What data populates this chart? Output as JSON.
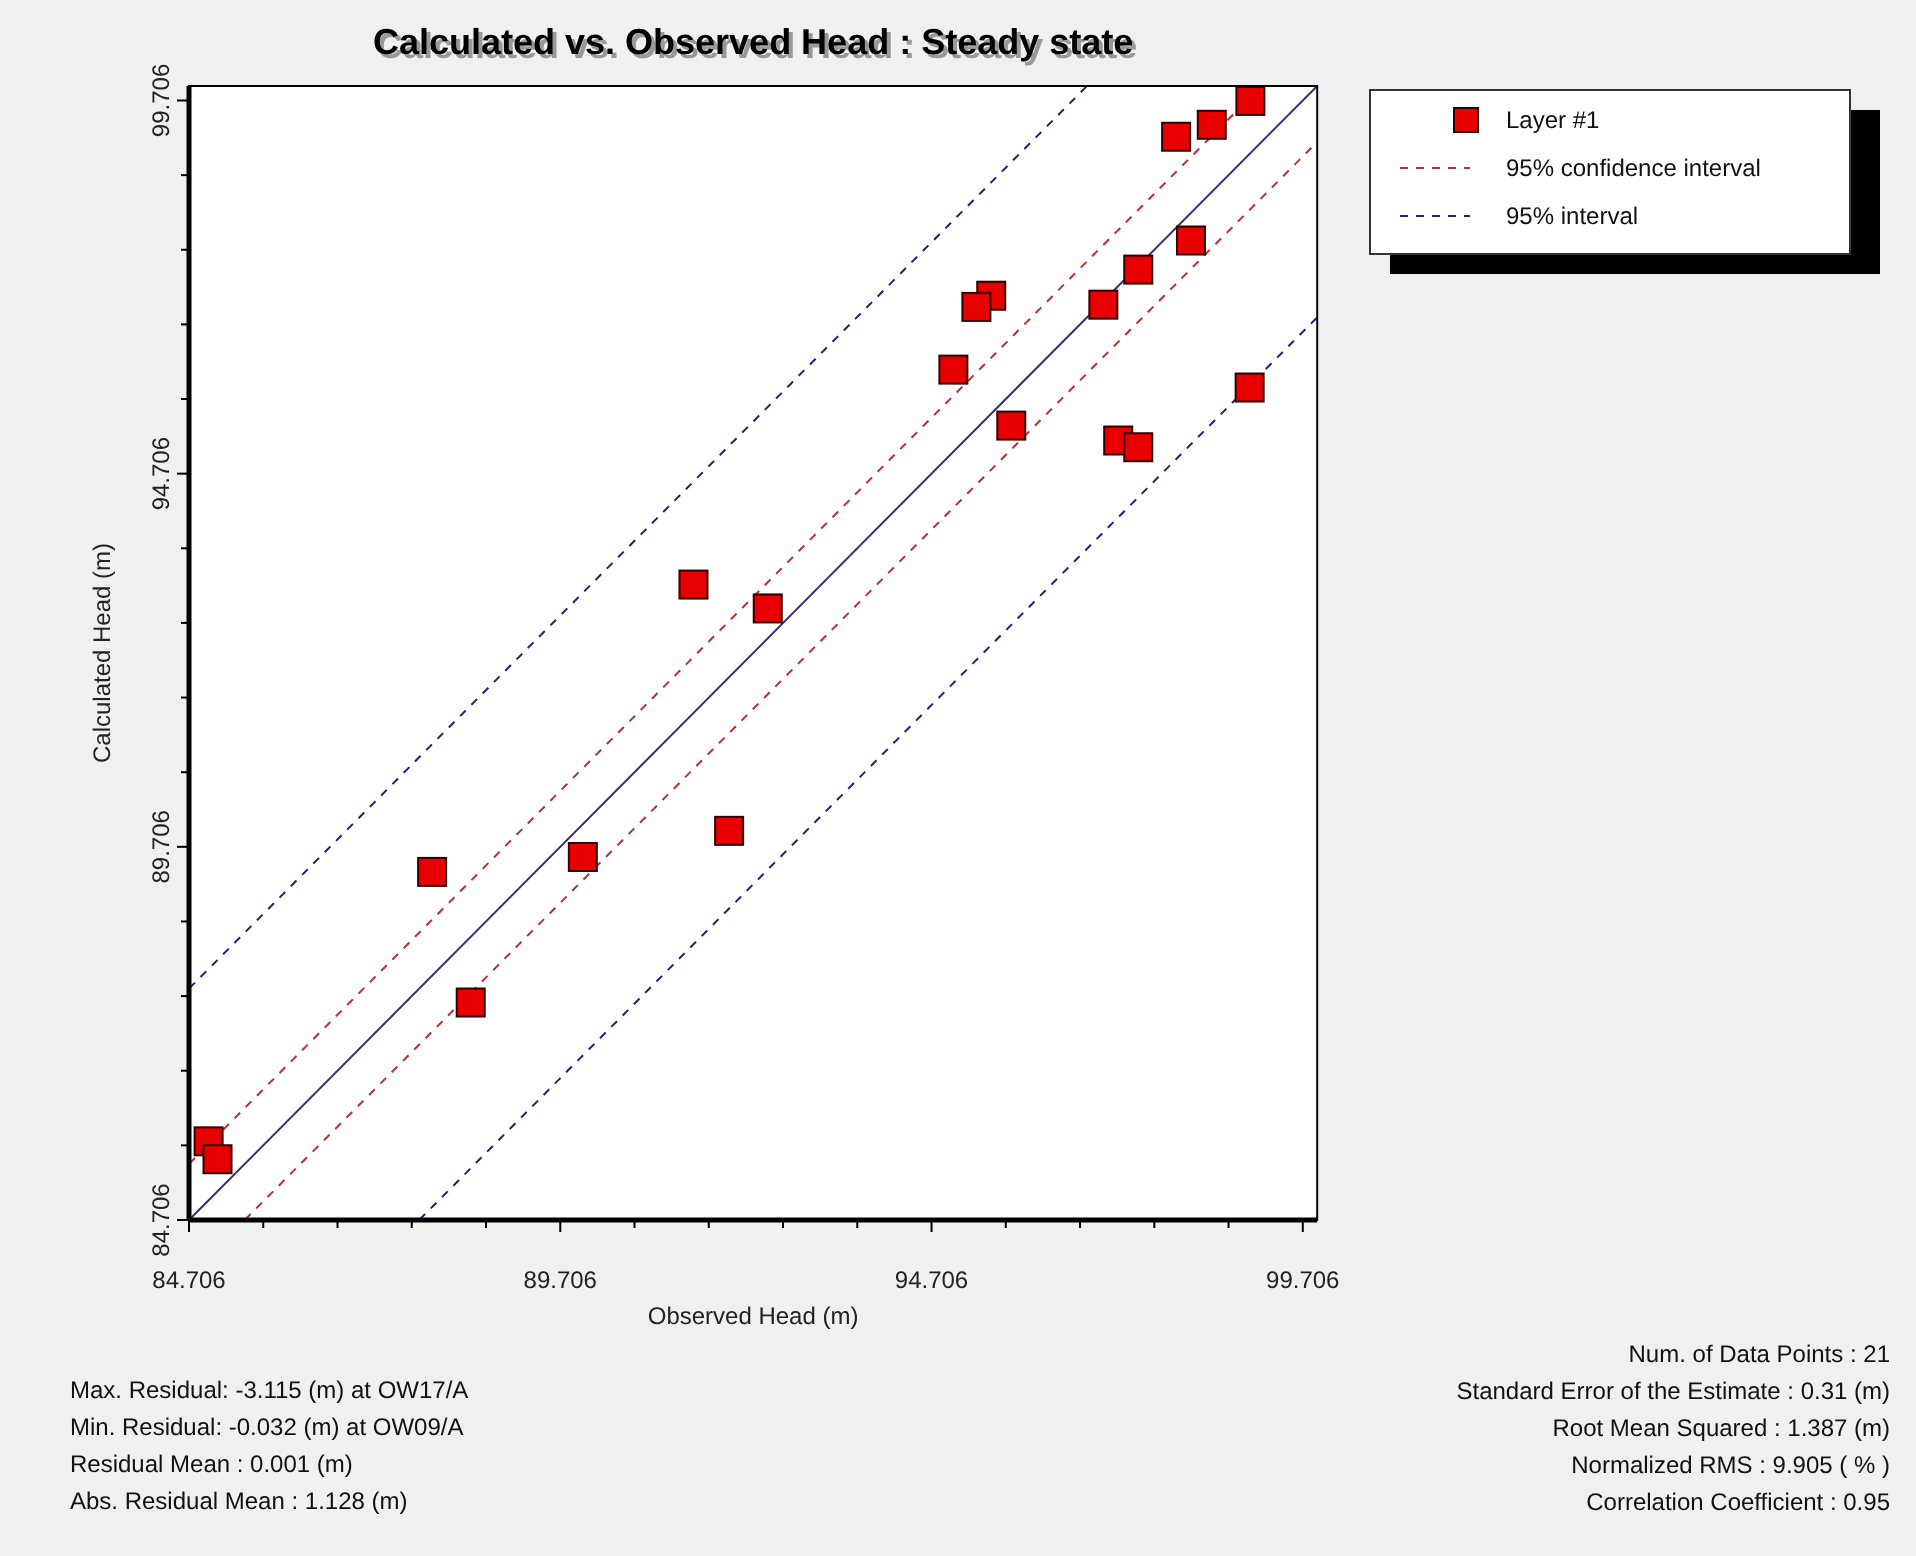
{
  "chart_data": {
    "type": "scatter",
    "title": "Calculated vs. Observed Head : Steady state",
    "xlabel": "Observed Head (m)",
    "ylabel": "Calculated Head (m)",
    "xlim": [
      84.706,
      99.9
    ],
    "ylim": [
      84.706,
      99.9
    ],
    "xticks": [
      84.706,
      {
        "value": 85.706,
        "label": null
      },
      {
        "value": 86.706,
        "label": null
      },
      {
        "value": 87.706,
        "label": null
      },
      {
        "value": 88.706,
        "label": null
      },
      89.706,
      {
        "value": 90.706,
        "label": null
      },
      {
        "value": 91.706,
        "label": null
      },
      {
        "value": 92.706,
        "label": null
      },
      {
        "value": 93.706,
        "label": null
      },
      94.706,
      {
        "value": 95.706,
        "label": null
      },
      {
        "value": 96.706,
        "label": null
      },
      {
        "value": 97.706,
        "label": null
      },
      {
        "value": 98.706,
        "label": null
      },
      99.706
    ],
    "yticks": [
      84.706,
      {
        "value": 85.706,
        "label": null
      },
      {
        "value": 86.706,
        "label": null
      },
      {
        "value": 87.706,
        "label": null
      },
      {
        "value": 88.706,
        "label": null
      },
      89.706,
      {
        "value": 90.706,
        "label": null
      },
      {
        "value": 91.706,
        "label": null
      },
      {
        "value": 92.706,
        "label": null
      },
      {
        "value": 93.706,
        "label": null
      },
      94.706,
      {
        "value": 95.706,
        "label": null
      },
      {
        "value": 96.706,
        "label": null
      },
      {
        "value": 97.706,
        "label": null
      },
      {
        "value": 98.706,
        "label": null
      },
      99.706
    ],
    "grid": false,
    "legend": "top right",
    "series": [
      {
        "name": "Layer #1",
        "marker": "square",
        "color": "#e80000",
        "x": [
          99.0,
          98.48,
          98.0,
          98.2,
          97.49,
          97.02,
          95.51,
          95.31,
          95.0,
          95.78,
          98.99,
          97.22,
          97.49,
          91.5,
          92.5,
          87.98,
          90.01,
          91.98,
          88.5,
          84.97,
          85.09
        ],
        "values": [
          99.7,
          99.38,
          99.22,
          97.83,
          97.44,
          96.97,
          97.09,
          96.94,
          96.1,
          95.35,
          95.86,
          95.15,
          95.06,
          93.22,
          92.9,
          89.37,
          89.57,
          89.92,
          87.62,
          85.76,
          85.52
        ]
      },
      {
        "type": "line",
        "marker": "none",
        "line_style": "solid",
        "color": "#303080",
        "x": [
          84.71,
          99.9
        ],
        "values": [
          84.71,
          99.9
        ]
      },
      {
        "name": "95% confidence interval",
        "type": "line",
        "marker": "none",
        "line_style": "dashed",
        "color": "#b83030",
        "x": [
          84.71,
          99.15
        ],
        "values": [
          85.46,
          99.9
        ]
      },
      {
        "type": "line",
        "marker": "none",
        "line_style": "dashed",
        "color": "#b83030",
        "x": [
          85.46,
          99.9
        ],
        "values": [
          84.71,
          99.15
        ]
      },
      {
        "name": "95% interval",
        "type": "line",
        "marker": "none",
        "line_style": "dashed",
        "color": "#202080",
        "x": [
          84.71,
          96.8
        ],
        "values": [
          87.81,
          99.9
        ]
      },
      {
        "type": "line",
        "marker": "none",
        "line_style": "dashed",
        "color": "#202080",
        "x": [
          87.81,
          99.9
        ],
        "values": [
          84.71,
          96.8
        ]
      }
    ],
    "annotations": [
      "Max. Residual: -3.115 (m) at OW17/A",
      "Min. Residual: -0.032 (m) at OW09/A",
      "Residual Mean : 0.001 (m)",
      "Abs. Residual Mean : 1.128 (m)",
      "Num. of Data Points : 21",
      "Standard Error of the Estimate : 0.31 (m)",
      "Root Mean Squared : 1.387 (m)",
      "Normalized RMS : 9.905 ( % )",
      "Correlation Coefficient : 0.95"
    ]
  }
}
